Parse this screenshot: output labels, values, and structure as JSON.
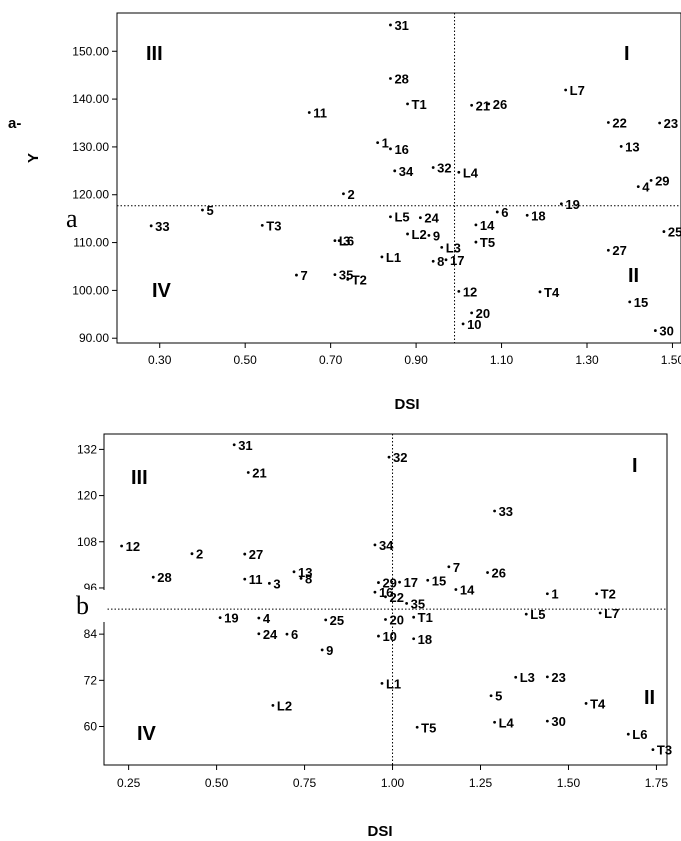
{
  "chart_data": [
    {
      "type": "scatter",
      "panel_label": "a",
      "title": "a-",
      "xlabel": "DSI",
      "ylabel": "Y",
      "xlim": [
        0.2,
        1.52
      ],
      "ylim": [
        89,
        158
      ],
      "x_ticks": [
        "0.30",
        "0.50",
        "0.70",
        "0.90",
        "1.10",
        "1.30",
        "1.50"
      ],
      "y_ticks": [
        "90.00",
        "100.00",
        "110.00",
        "120.00",
        "130.00",
        "140.00",
        "150.00"
      ],
      "ref_lines": {
        "x": 0.99,
        "y": 117.7
      },
      "quadrants": [
        "I",
        "II",
        "III",
        "IV"
      ],
      "points": [
        {
          "label": "31",
          "x": 0.84,
          "y": 155.5
        },
        {
          "label": "28",
          "x": 0.84,
          "y": 144.3
        },
        {
          "label": "T1",
          "x": 0.88,
          "y": 139.0
        },
        {
          "label": "11",
          "x": 0.65,
          "y": 137.2
        },
        {
          "label": "1",
          "x": 0.81,
          "y": 130.9
        },
        {
          "label": "16",
          "x": 0.84,
          "y": 129.6
        },
        {
          "label": "34",
          "x": 0.85,
          "y": 125.0
        },
        {
          "label": "32",
          "x": 0.94,
          "y": 125.7
        },
        {
          "label": "2",
          "x": 0.73,
          "y": 120.2
        },
        {
          "label": "21",
          "x": 1.03,
          "y": 138.7
        },
        {
          "label": "26",
          "x": 1.07,
          "y": 139.0
        },
        {
          "label": "L7",
          "x": 1.25,
          "y": 141.9
        },
        {
          "label": "22",
          "x": 1.35,
          "y": 135.1
        },
        {
          "label": "23",
          "x": 1.47,
          "y": 135.0
        },
        {
          "label": "13",
          "x": 1.38,
          "y": 130.1
        },
        {
          "label": "L4",
          "x": 1.0,
          "y": 124.7
        },
        {
          "label": "19",
          "x": 1.24,
          "y": 118.1
        },
        {
          "label": "4",
          "x": 1.42,
          "y": 121.7
        },
        {
          "label": "29",
          "x": 1.45,
          "y": 123.0
        },
        {
          "label": "5",
          "x": 0.4,
          "y": 116.8
        },
        {
          "label": "33",
          "x": 0.28,
          "y": 113.5
        },
        {
          "label": "T3",
          "x": 0.54,
          "y": 113.6
        },
        {
          "label": "L5",
          "x": 0.84,
          "y": 115.4
        },
        {
          "label": "24",
          "x": 0.91,
          "y": 115.2
        },
        {
          "label": "L2",
          "x": 0.88,
          "y": 111.8
        },
        {
          "label": "9",
          "x": 0.93,
          "y": 111.5
        },
        {
          "label": "L6",
          "x": 0.71,
          "y": 110.4
        },
        {
          "label": "3",
          "x": 0.72,
          "y": 110.4
        },
        {
          "label": "L3",
          "x": 0.96,
          "y": 109.0
        },
        {
          "label": "L1",
          "x": 0.82,
          "y": 107.0
        },
        {
          "label": "8",
          "x": 0.94,
          "y": 106.1
        },
        {
          "label": "17",
          "x": 0.97,
          "y": 106.4
        },
        {
          "label": "7",
          "x": 0.62,
          "y": 103.2
        },
        {
          "label": "35",
          "x": 0.71,
          "y": 103.3
        },
        {
          "label": "T2",
          "x": 0.74,
          "y": 102.3
        },
        {
          "label": "6",
          "x": 1.09,
          "y": 116.4
        },
        {
          "label": "14",
          "x": 1.04,
          "y": 113.7
        },
        {
          "label": "18",
          "x": 1.16,
          "y": 115.7
        },
        {
          "label": "T5",
          "x": 1.04,
          "y": 110.1
        },
        {
          "label": "25",
          "x": 1.48,
          "y": 112.3
        },
        {
          "label": "27",
          "x": 1.35,
          "y": 108.4
        },
        {
          "label": "12",
          "x": 1.0,
          "y": 99.8
        },
        {
          "label": "T4",
          "x": 1.19,
          "y": 99.7
        },
        {
          "label": "20",
          "x": 1.03,
          "y": 95.3
        },
        {
          "label": "10",
          "x": 1.01,
          "y": 93.0
        },
        {
          "label": "15",
          "x": 1.4,
          "y": 97.6
        },
        {
          "label": "30",
          "x": 1.46,
          "y": 91.6
        }
      ]
    },
    {
      "type": "scatter",
      "panel_label": "b",
      "title": "",
      "xlabel": "DSI",
      "ylabel": "",
      "xlim": [
        0.18,
        1.78
      ],
      "ylim": [
        50,
        136
      ],
      "x_ticks": [
        "0.25",
        "0.50",
        "0.75",
        "1.00",
        "1.25",
        "1.50",
        "1.75"
      ],
      "y_ticks": [
        "60",
        "72",
        "84",
        "96",
        "108",
        "120",
        "132"
      ],
      "ref_lines": {
        "x": 1.0,
        "y": 90.5
      },
      "quadrants": [
        "I",
        "II",
        "III",
        "IV"
      ],
      "points": [
        {
          "label": "31",
          "x": 0.55,
          "y": 133.2
        },
        {
          "label": "21",
          "x": 0.59,
          "y": 126.0
        },
        {
          "label": "32",
          "x": 0.99,
          "y": 130.0
        },
        {
          "label": "12",
          "x": 0.23,
          "y": 106.9
        },
        {
          "label": "2",
          "x": 0.43,
          "y": 104.9
        },
        {
          "label": "27",
          "x": 0.58,
          "y": 104.8
        },
        {
          "label": "34",
          "x": 0.95,
          "y": 107.2
        },
        {
          "label": "33",
          "x": 1.29,
          "y": 116.0
        },
        {
          "label": "28",
          "x": 0.32,
          "y": 98.8
        },
        {
          "label": "11",
          "x": 0.58,
          "y": 98.3
        },
        {
          "label": "13",
          "x": 0.72,
          "y": 100.2
        },
        {
          "label": "8",
          "x": 0.74,
          "y": 98.5
        },
        {
          "label": "3",
          "x": 0.65,
          "y": 97.2
        },
        {
          "label": "7",
          "x": 1.16,
          "y": 101.5
        },
        {
          "label": "26",
          "x": 1.27,
          "y": 100.0
        },
        {
          "label": "29",
          "x": 0.96,
          "y": 97.4
        },
        {
          "label": "17",
          "x": 1.02,
          "y": 97.5
        },
        {
          "label": "15",
          "x": 1.1,
          "y": 98.0
        },
        {
          "label": "16",
          "x": 0.95,
          "y": 94.9
        },
        {
          "label": "22",
          "x": 0.98,
          "y": 93.7
        },
        {
          "label": "14",
          "x": 1.18,
          "y": 95.6
        },
        {
          "label": "35",
          "x": 1.04,
          "y": 92.0
        },
        {
          "label": "1",
          "x": 1.44,
          "y": 94.5
        },
        {
          "label": "T2",
          "x": 1.58,
          "y": 94.5
        },
        {
          "label": "L5",
          "x": 1.38,
          "y": 89.2
        },
        {
          "label": "L7",
          "x": 1.59,
          "y": 89.5
        },
        {
          "label": "T1",
          "x": 1.06,
          "y": 88.4
        },
        {
          "label": "19",
          "x": 0.51,
          "y": 88.3
        },
        {
          "label": "4",
          "x": 0.62,
          "y": 88.2
        },
        {
          "label": "25",
          "x": 0.81,
          "y": 87.7
        },
        {
          "label": "20",
          "x": 0.98,
          "y": 87.8
        },
        {
          "label": "24",
          "x": 0.62,
          "y": 84.1
        },
        {
          "label": "6",
          "x": 0.7,
          "y": 84.0
        },
        {
          "label": "10",
          "x": 0.96,
          "y": 83.5
        },
        {
          "label": "18",
          "x": 1.06,
          "y": 82.8
        },
        {
          "label": "9",
          "x": 0.8,
          "y": 79.9
        },
        {
          "label": "L1",
          "x": 0.97,
          "y": 71.2
        },
        {
          "label": "L2",
          "x": 0.66,
          "y": 65.5
        },
        {
          "label": "L3",
          "x": 1.35,
          "y": 72.8
        },
        {
          "label": "23",
          "x": 1.44,
          "y": 72.9
        },
        {
          "label": "5",
          "x": 1.28,
          "y": 68.0
        },
        {
          "label": "T4",
          "x": 1.55,
          "y": 66.0
        },
        {
          "label": "L4",
          "x": 1.29,
          "y": 61.1
        },
        {
          "label": "30",
          "x": 1.44,
          "y": 61.4
        },
        {
          "label": "L6",
          "x": 1.67,
          "y": 58.0
        },
        {
          "label": "T5",
          "x": 1.07,
          "y": 59.8
        },
        {
          "label": "T3",
          "x": 1.74,
          "y": 54.0
        }
      ]
    }
  ]
}
